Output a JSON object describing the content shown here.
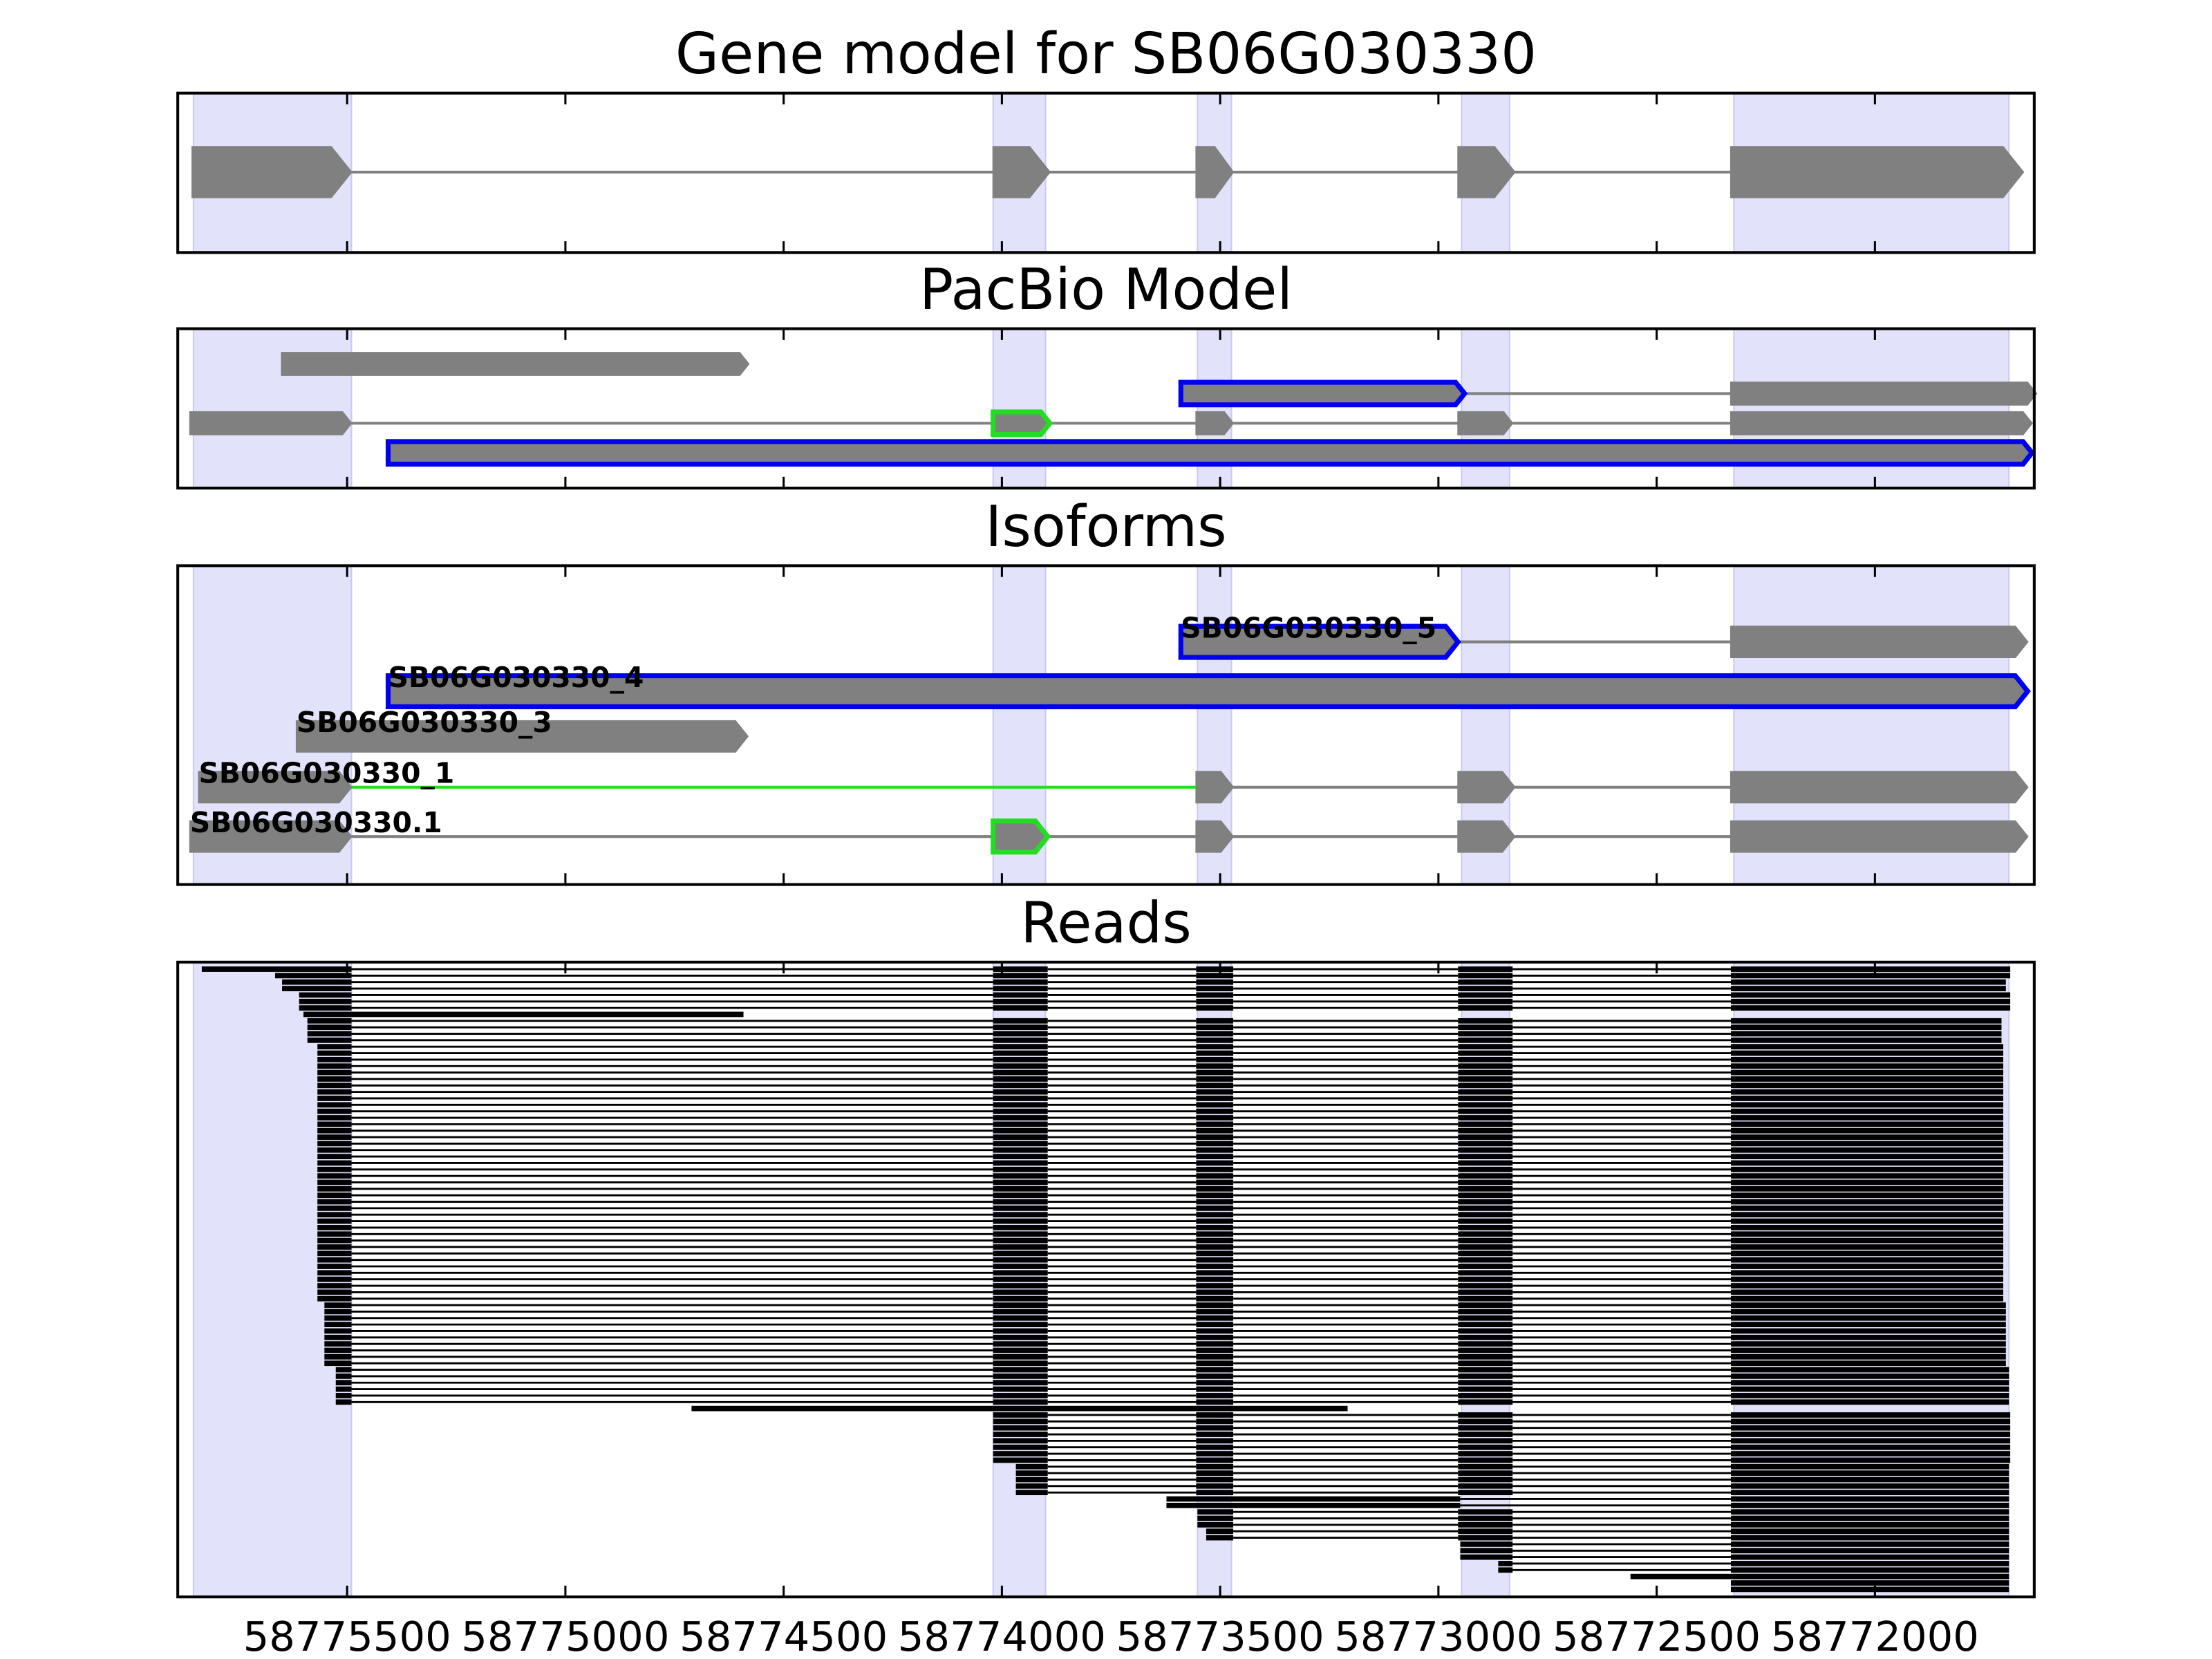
{
  "figure": {
    "xlim": [
      58775888,
      58771635
    ],
    "xticks": [
      58775500,
      58775000,
      58774500,
      58774000,
      58773500,
      58773000,
      58772500,
      58772000
    ],
    "highlights": [
      [
        58775852,
        58775490
      ],
      [
        58774020,
        58773900
      ],
      [
        58773552,
        58773474
      ],
      [
        58772947,
        58772837
      ],
      [
        58772323,
        58771693
      ]
    ],
    "highlight_color": "#e2e2fb",
    "panels": [
      {
        "title": "Gene model for SB06G030330",
        "tracks": [
          {
            "exons": [
              [
                58775855,
                58775490
              ],
              [
                58774020,
                58773890
              ],
              [
                58773555,
                58773470
              ],
              [
                58772955,
                58772825
              ],
              [
                58772330,
                58771660
              ]
            ],
            "fill": "#808080",
            "edges": [
              "#808080",
              "#808080",
              "#808080",
              "#808080",
              "#808080"
            ],
            "introns": [
              "#808080",
              "#808080",
              "#808080",
              "#808080"
            ]
          }
        ]
      },
      {
        "title": "PacBio Model",
        "tracks": [
          {
            "exons": [
              [
                58775650,
                58774580
              ]
            ],
            "fill": "#808080",
            "edges": [
              "#808080"
            ],
            "introns": []
          },
          {
            "exons": [
              [
                58773590,
                58772940
              ],
              [
                58772330,
                58771630
              ]
            ],
            "fill": "#808080",
            "edges": [
              "#0000ee",
              "#808080"
            ],
            "introns": [
              "#808080"
            ]
          },
          {
            "exons": [
              [
                58775860,
                58775490
              ],
              [
                58774020,
                58773890
              ],
              [
                58773555,
                58773470
              ],
              [
                58772955,
                58772830
              ],
              [
                58772330,
                58771640
              ]
            ],
            "fill": "#808080",
            "edges": [
              "#808080",
              "#22dd22",
              "#808080",
              "#808080",
              "#808080"
            ],
            "introns": [
              "#808080",
              "#808080",
              "#808080",
              "#808080"
            ]
          },
          {
            "exons": [
              [
                58775406,
                58771640
              ]
            ],
            "fill": "#808080",
            "edges": [
              "#0000ee"
            ],
            "introns": []
          }
        ]
      },
      {
        "title": "Isoforms",
        "tracks": [
          {
            "name": "SB06G030330_5",
            "exons": [
              [
                58773590,
                58772955
              ],
              [
                58772330,
                58771650
              ]
            ],
            "fill": "#808080",
            "edges": [
              "#0000ee",
              "#808080"
            ],
            "introns": [
              "#808080"
            ]
          },
          {
            "name": "SB06G030330_4",
            "exons": [
              [
                58775406,
                58771650
              ]
            ],
            "fill": "#808080",
            "edges": [
              "#0000ee"
            ],
            "introns": []
          },
          {
            "name": "SB06G030330_3",
            "exons": [
              [
                58775616,
                58774582
              ]
            ],
            "fill": "#808080",
            "edges": [
              "#808080"
            ],
            "introns": []
          },
          {
            "name": "SB06G030330_1",
            "exons": [
              [
                58775840,
                58775490
              ],
              [
                58773555,
                58773470
              ],
              [
                58772955,
                58772825
              ],
              [
                58772330,
                58771650
              ]
            ],
            "fill": "#808080",
            "edges": [
              "#808080",
              "#808080",
              "#808080",
              "#808080"
            ],
            "introns": [
              "#22dd22",
              "#808080",
              "#808080"
            ]
          },
          {
            "name": "SB06G030330.1",
            "exons": [
              [
                58775860,
                58775490
              ],
              [
                58774020,
                58773895
              ],
              [
                58773555,
                58773470
              ],
              [
                58772955,
                58772825
              ],
              [
                58772330,
                58771650
              ]
            ],
            "fill": "#808080",
            "edges": [
              "#808080",
              "#22dd22",
              "#808080",
              "#808080",
              "#808080"
            ],
            "introns": [
              "#808080",
              "#808080",
              "#808080",
              "#808080"
            ]
          }
        ]
      },
      {
        "title": "Reads",
        "read_color": "#000000",
        "reads": [
          {
            "count": 1,
            "exons": [
              [
                58775833,
                58775490
              ],
              [
                58774020,
                58773895
              ],
              [
                58773555,
                58773470
              ],
              [
                58772955,
                58772830
              ],
              [
                58772330,
                58771690
              ]
            ]
          },
          {
            "count": 1,
            "exons": [
              [
                58775665,
                58775490
              ],
              [
                58774020,
                58773895
              ],
              [
                58773555,
                58773470
              ],
              [
                58772955,
                58772830
              ],
              [
                58772330,
                58771690
              ]
            ]
          },
          {
            "count": 2,
            "exons": [
              [
                58775649,
                58775490
              ],
              [
                58774020,
                58773895
              ],
              [
                58773555,
                58773470
              ],
              [
                58772955,
                58772830
              ],
              [
                58772330,
                58771700
              ]
            ]
          },
          {
            "count": 3,
            "exons": [
              [
                58775610,
                58775490
              ],
              [
                58774020,
                58773895
              ],
              [
                58773555,
                58773470
              ],
              [
                58772955,
                58772830
              ],
              [
                58772330,
                58771690
              ]
            ]
          },
          {
            "count": 1,
            "exons": [
              [
                58775600,
                58774592
              ]
            ]
          },
          {
            "count": 4,
            "exons": [
              [
                58775591,
                58775490
              ],
              [
                58774020,
                58773895
              ],
              [
                58773555,
                58773470
              ],
              [
                58772955,
                58772830
              ],
              [
                58772330,
                58771710
              ]
            ]
          },
          {
            "count": 40,
            "exons": [
              [
                58775568,
                58775490
              ],
              [
                58774020,
                58773895
              ],
              [
                58773555,
                58773470
              ],
              [
                58772955,
                58772830
              ],
              [
                58772330,
                58771706
              ]
            ]
          },
          {
            "count": 10,
            "exons": [
              [
                58775552,
                58775490
              ],
              [
                58774020,
                58773895
              ],
              [
                58773555,
                58773470
              ],
              [
                58772955,
                58772830
              ],
              [
                58772330,
                58771700
              ]
            ]
          },
          {
            "count": 6,
            "exons": [
              [
                58775526,
                58775490
              ],
              [
                58774020,
                58773895
              ],
              [
                58773555,
                58773470
              ],
              [
                58772955,
                58772830
              ],
              [
                58772330,
                58771693
              ]
            ]
          },
          {
            "count": 1,
            "exons": [
              [
                58774711,
                58773208
              ]
            ]
          },
          {
            "count": 8,
            "exons": [
              [
                58774020,
                58773895
              ],
              [
                58773555,
                58773470
              ],
              [
                58772955,
                58772830
              ],
              [
                58772330,
                58771690
              ]
            ]
          },
          {
            "count": 5,
            "exons": [
              [
                58773968,
                58773895
              ],
              [
                58773555,
                58773470
              ],
              [
                58772955,
                58772830
              ],
              [
                58772330,
                58771693
              ]
            ]
          },
          {
            "count": 2,
            "exons": [
              [
                58773623,
                58772950
              ],
              [
                58772330,
                58771693
              ]
            ]
          },
          {
            "count": 3,
            "exons": [
              [
                58773552,
                58773470
              ],
              [
                58772955,
                58772830
              ],
              [
                58772330,
                58771693
              ]
            ]
          },
          {
            "count": 2,
            "exons": [
              [
                58773532,
                58773470
              ],
              [
                58772955,
                58772830
              ],
              [
                58772330,
                58771693
              ]
            ]
          },
          {
            "count": 3,
            "exons": [
              [
                58772950,
                58772830
              ],
              [
                58772330,
                58771693
              ]
            ]
          },
          {
            "count": 2,
            "exons": [
              [
                58772863,
                58772830
              ],
              [
                58772330,
                58771693
              ]
            ]
          },
          {
            "count": 1,
            "exons": [
              [
                58772560,
                58771693
              ]
            ]
          },
          {
            "count": 2,
            "exons": [
              [
                58772330,
                58771693
              ]
            ]
          }
        ]
      }
    ]
  }
}
